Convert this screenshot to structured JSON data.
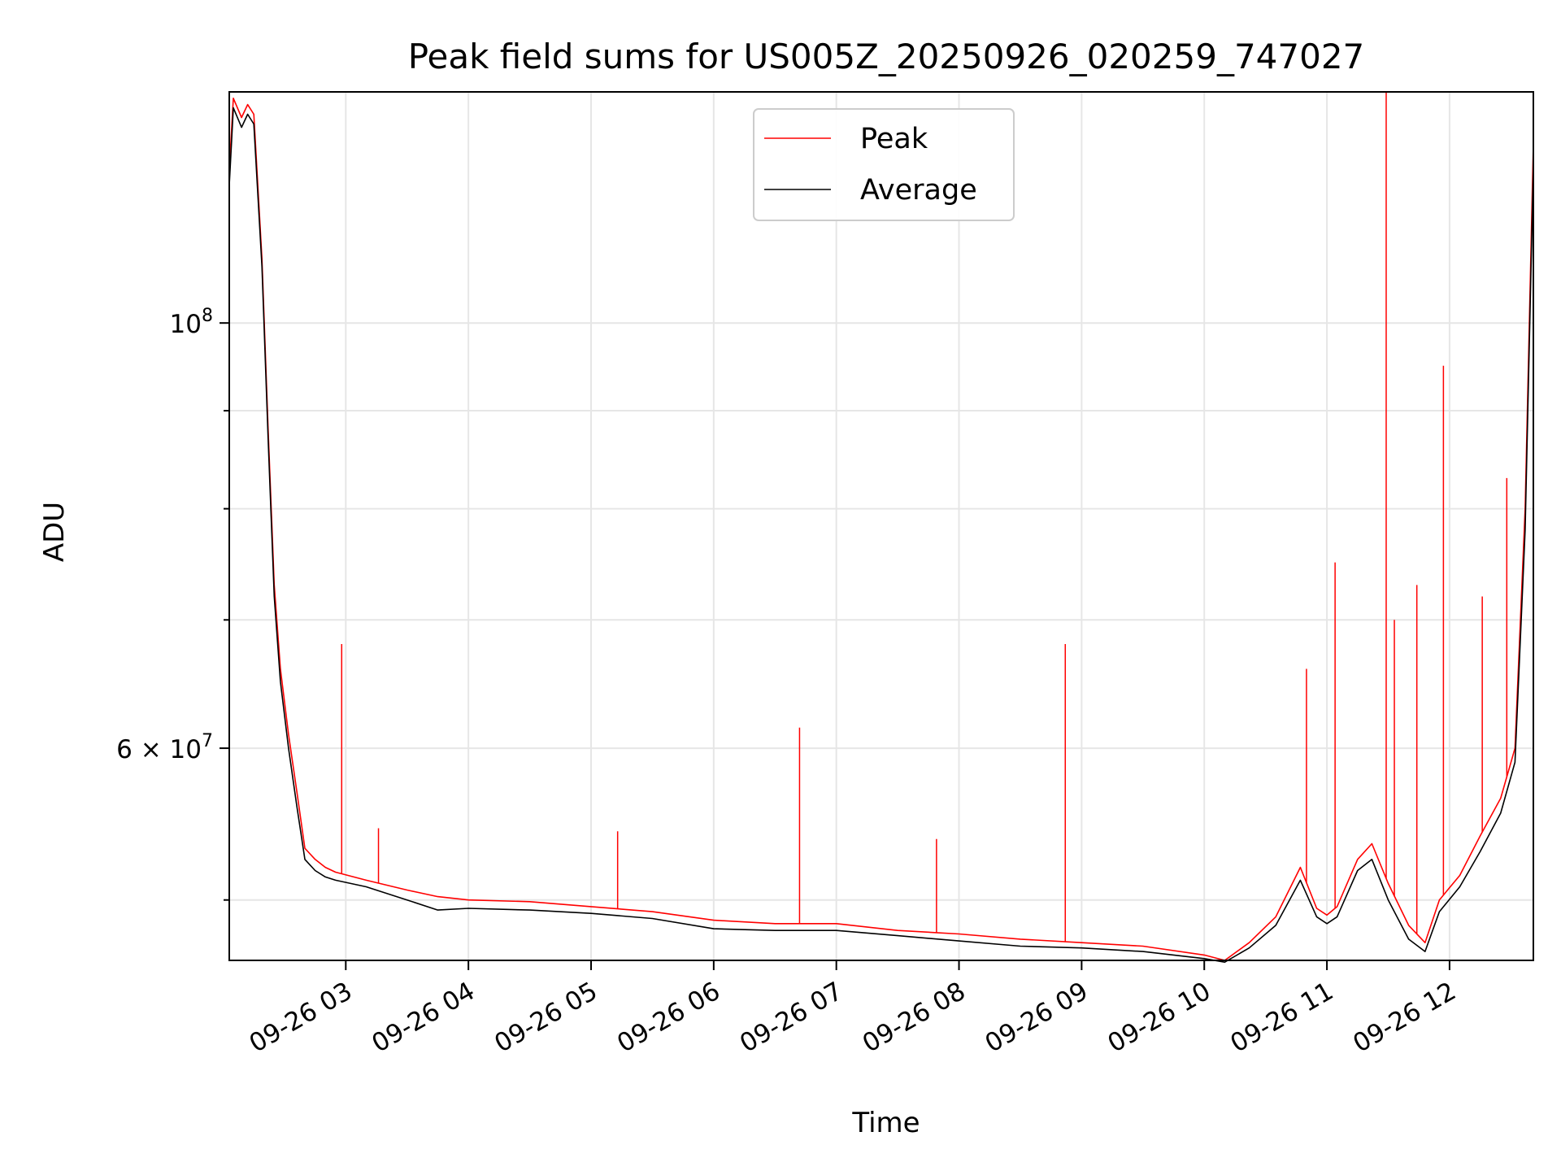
{
  "chart_data": {
    "type": "line",
    "title": "Peak field sums for US005Z_20250926_020259_747027",
    "xlabel": "Time",
    "ylabel": "ADU",
    "y_scale": "log",
    "xlim": [
      "2025-09-26 02:03",
      "2025-09-26 12:41"
    ],
    "ylim": [
      46500000,
      132000000
    ],
    "x_tick_labels": [
      "09-26 03",
      "09-26 04",
      "09-26 05",
      "09-26 06",
      "09-26 07",
      "09-26 08",
      "09-26 09",
      "09-26 10",
      "09-26 11",
      "09-26 12"
    ],
    "x_ticks": [
      "2025-09-26 03:00",
      "2025-09-26 04:00",
      "2025-09-26 05:00",
      "2025-09-26 06:00",
      "2025-09-26 07:00",
      "2025-09-26 08:00",
      "2025-09-26 09:00",
      "2025-09-26 10:00",
      "2025-09-26 11:00",
      "2025-09-26 12:00"
    ],
    "y_tick_labels": [
      {
        "value": 100000000,
        "mantissa": "",
        "exponent": "8"
      },
      {
        "value": 60000000,
        "mantissa": "6",
        "exponent": "7"
      }
    ],
    "y_minor_ticks": [
      50000000,
      70000000,
      80000000,
      90000000
    ],
    "grid": true,
    "legend_position": "top-center",
    "series": [
      {
        "name": "Peak",
        "color": "#ff0000",
        "x": [
          "2025-09-26 02:03",
          "2025-09-26 02:05",
          "2025-09-26 02:09",
          "2025-09-26 02:12",
          "2025-09-26 02:15",
          "2025-09-26 02:19",
          "2025-09-26 02:22",
          "2025-09-26 02:25",
          "2025-09-26 02:28",
          "2025-09-26 02:32",
          "2025-09-26 02:36",
          "2025-09-26 02:40",
          "2025-09-26 02:45",
          "2025-09-26 02:50",
          "2025-09-26 02:55",
          "2025-09-26 03:10",
          "2025-09-26 03:30",
          "2025-09-26 03:45",
          "2025-09-26 04:00",
          "2025-09-26 04:30",
          "2025-09-26 05:00",
          "2025-09-26 05:30",
          "2025-09-26 06:00",
          "2025-09-26 06:30",
          "2025-09-26 07:00",
          "2025-09-26 07:30",
          "2025-09-26 08:00",
          "2025-09-26 08:30",
          "2025-09-26 09:00",
          "2025-09-26 09:30",
          "2025-09-26 10:00",
          "2025-09-26 10:10",
          "2025-09-26 10:22",
          "2025-09-26 10:35",
          "2025-09-26 10:47",
          "2025-09-26 10:55",
          "2025-09-26 11:00",
          "2025-09-26 11:05",
          "2025-09-26 11:15",
          "2025-09-26 11:22",
          "2025-09-26 11:30",
          "2025-09-26 11:40",
          "2025-09-26 11:48",
          "2025-09-26 11:55",
          "2025-09-26 12:05",
          "2025-09-26 12:15",
          "2025-09-26 12:25",
          "2025-09-26 12:32",
          "2025-09-26 12:37",
          "2025-09-26 12:41"
        ],
        "y": [
          120000000,
          131000000,
          128000000,
          130000000,
          128500000,
          108000000,
          88000000,
          73000000,
          66000000,
          61000000,
          57000000,
          53200000,
          52500000,
          52000000,
          51700000,
          51200000,
          50600000,
          50200000,
          50000000,
          49900000,
          49600000,
          49300000,
          48800000,
          48600000,
          48600000,
          48200000,
          48000000,
          47700000,
          47500000,
          47300000,
          46800000,
          46500000,
          47500000,
          49000000,
          52000000,
          49500000,
          49100000,
          49600000,
          52500000,
          53500000,
          51000000,
          48500000,
          47500000,
          50000000,
          51500000,
          54000000,
          56500000,
          60000000,
          80000000,
          124000000
        ]
      },
      {
        "name": "Average",
        "color": "#000000",
        "x": [
          "2025-09-26 02:03",
          "2025-09-26 02:05",
          "2025-09-26 02:09",
          "2025-09-26 02:12",
          "2025-09-26 02:15",
          "2025-09-26 02:19",
          "2025-09-26 02:22",
          "2025-09-26 02:25",
          "2025-09-26 02:28",
          "2025-09-26 02:32",
          "2025-09-26 02:36",
          "2025-09-26 02:40",
          "2025-09-26 02:45",
          "2025-09-26 02:50",
          "2025-09-26 02:55",
          "2025-09-26 03:10",
          "2025-09-26 03:30",
          "2025-09-26 03:45",
          "2025-09-26 04:00",
          "2025-09-26 04:30",
          "2025-09-26 05:00",
          "2025-09-26 05:30",
          "2025-09-26 06:00",
          "2025-09-26 06:30",
          "2025-09-26 07:00",
          "2025-09-26 07:30",
          "2025-09-26 08:00",
          "2025-09-26 08:30",
          "2025-09-26 09:00",
          "2025-09-26 09:30",
          "2025-09-26 10:00",
          "2025-09-26 10:10",
          "2025-09-26 10:22",
          "2025-09-26 10:35",
          "2025-09-26 10:47",
          "2025-09-26 10:55",
          "2025-09-26 11:00",
          "2025-09-26 11:05",
          "2025-09-26 11:15",
          "2025-09-26 11:22",
          "2025-09-26 11:30",
          "2025-09-26 11:40",
          "2025-09-26 11:48",
          "2025-09-26 11:55",
          "2025-09-26 12:05",
          "2025-09-26 12:15",
          "2025-09-26 12:25",
          "2025-09-26 12:32",
          "2025-09-26 12:37",
          "2025-09-26 12:41"
        ],
        "y": [
          118000000,
          129500000,
          126500000,
          128500000,
          127000000,
          107000000,
          87000000,
          72000000,
          65000000,
          60000000,
          56000000,
          52500000,
          51800000,
          51400000,
          51200000,
          50800000,
          50000000,
          49400000,
          49500000,
          49400000,
          49200000,
          48900000,
          48300000,
          48200000,
          48200000,
          47900000,
          47600000,
          47300000,
          47200000,
          47000000,
          46600000,
          46400000,
          47200000,
          48500000,
          51200000,
          49000000,
          48600000,
          49000000,
          51800000,
          52500000,
          50000000,
          47700000,
          47000000,
          49300000,
          50800000,
          53000000,
          55500000,
          59000000,
          78000000,
          121000000
        ]
      }
    ],
    "spikes": [
      {
        "series": "Peak",
        "x": "2025-09-26 02:58",
        "y": 68000000
      },
      {
        "series": "Peak",
        "x": "2025-09-26 03:16",
        "y": 54500000
      },
      {
        "series": "Peak",
        "x": "2025-09-26 05:13",
        "y": 54300000
      },
      {
        "series": "Peak",
        "x": "2025-09-26 06:42",
        "y": 61500000
      },
      {
        "series": "Peak",
        "x": "2025-09-26 07:49",
        "y": 53800000
      },
      {
        "series": "Peak",
        "x": "2025-09-26 08:52",
        "y": 68000000
      },
      {
        "series": "Peak",
        "x": "2025-09-26 10:50",
        "y": 66000000
      },
      {
        "series": "Peak",
        "x": "2025-09-26 11:04",
        "y": 75000000
      },
      {
        "series": "Peak",
        "x": "2025-09-26 11:29",
        "y": 132000000
      },
      {
        "series": "Peak",
        "x": "2025-09-26 11:33",
        "y": 70000000
      },
      {
        "series": "Peak",
        "x": "2025-09-26 11:44",
        "y": 73000000
      },
      {
        "series": "Peak",
        "x": "2025-09-26 11:57",
        "y": 95000000
      },
      {
        "series": "Peak",
        "x": "2025-09-26 12:16",
        "y": 72000000
      },
      {
        "series": "Peak",
        "x": "2025-09-26 12:28",
        "y": 83000000
      }
    ]
  }
}
